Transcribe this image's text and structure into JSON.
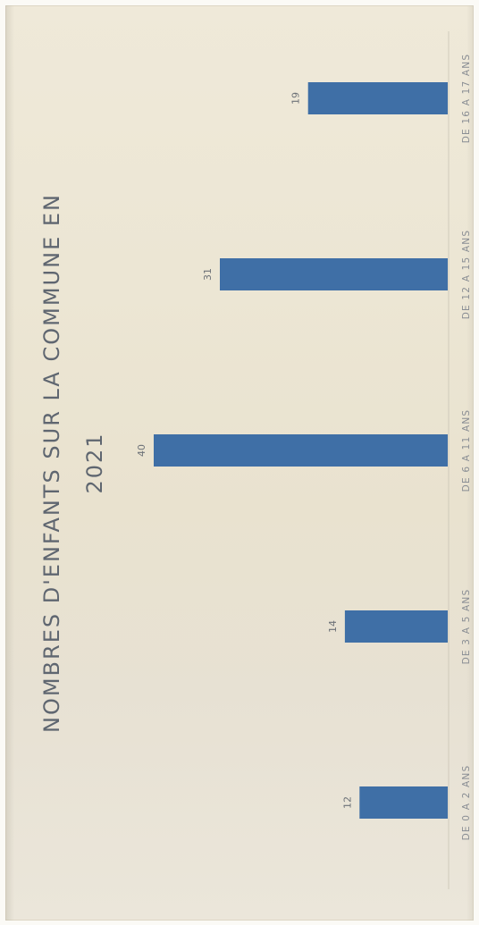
{
  "chart_data": {
    "type": "bar",
    "orientation": "horizontal-bars",
    "title_lines": [
      "NOMBRES D'ENFANTS SUR LA COMMUNE EN",
      "2021"
    ],
    "categories": [
      "DE 0 A 2 ANS",
      "DE 3 A 5 ANS",
      "DE 6 A 11 ANS",
      "DE 12 A 15 ANS",
      "DE 16 A 17 ANS"
    ],
    "values": [
      12,
      14,
      40,
      31,
      19
    ],
    "value_labels": [
      "12",
      "14",
      "40",
      "31",
      "19"
    ],
    "bar_color": "#3f6fa6",
    "grid": false,
    "legend": "none"
  }
}
